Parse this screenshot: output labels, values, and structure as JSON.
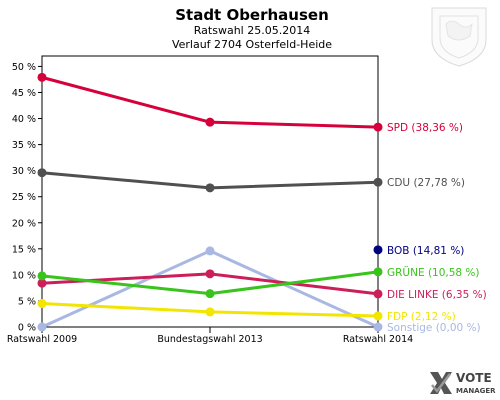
{
  "header": {
    "title": "Stadt Oberhausen",
    "subtitle1": "Ratswahl 25.05.2014",
    "subtitle2": "Verlauf 2704 Osterfeld-Heide"
  },
  "logo": {
    "word1": "VOTE",
    "word2": "MANAGER",
    "crest_icon": "coat-of-arms-icon"
  },
  "chart_data": {
    "type": "line",
    "categories": [
      "Ratswahl 2009",
      "Bundestagswahl 2013",
      "Ratswahl 2014"
    ],
    "ylim": [
      0,
      52
    ],
    "yticks": [
      "0 %",
      "5 %",
      "10 %",
      "15 %",
      "20 %",
      "25 %",
      "30 %",
      "35 %",
      "40 %",
      "45 %",
      "50 %"
    ],
    "ytick_values": [
      0,
      5,
      10,
      15,
      20,
      25,
      30,
      35,
      40,
      45,
      50
    ],
    "grid": false,
    "legend": "right-end labels",
    "series": [
      {
        "name": "SPD",
        "label": "SPD (38,36 %)",
        "color": "#d6003a",
        "values": [
          47.9,
          39.3,
          38.36
        ]
      },
      {
        "name": "CDU",
        "label": "CDU (27,78 %)",
        "color": "#505050",
        "values": [
          29.6,
          26.7,
          27.78
        ]
      },
      {
        "name": "BOB",
        "label": "BOB (14,81 %)",
        "color": "#000080",
        "values": [
          null,
          null,
          14.81
        ]
      },
      {
        "name": "GRÜNE",
        "label": "GRÜNE (10,58 %)",
        "color": "#38c41c",
        "values": [
          9.8,
          6.4,
          10.58
        ]
      },
      {
        "name": "DIE LINKE",
        "label": "DIE LINKE (6,35 %)",
        "color": "#cc1f5a",
        "values": [
          8.4,
          10.2,
          6.35
        ]
      },
      {
        "name": "FDP",
        "label": "FDP (2,12 %)",
        "color": "#f2e600",
        "values": [
          4.5,
          2.9,
          2.12
        ]
      },
      {
        "name": "Sonstige",
        "label": "Sonstige (0,00 %)",
        "color": "#a9b8e2",
        "values": [
          0,
          14.6,
          0
        ]
      }
    ]
  }
}
